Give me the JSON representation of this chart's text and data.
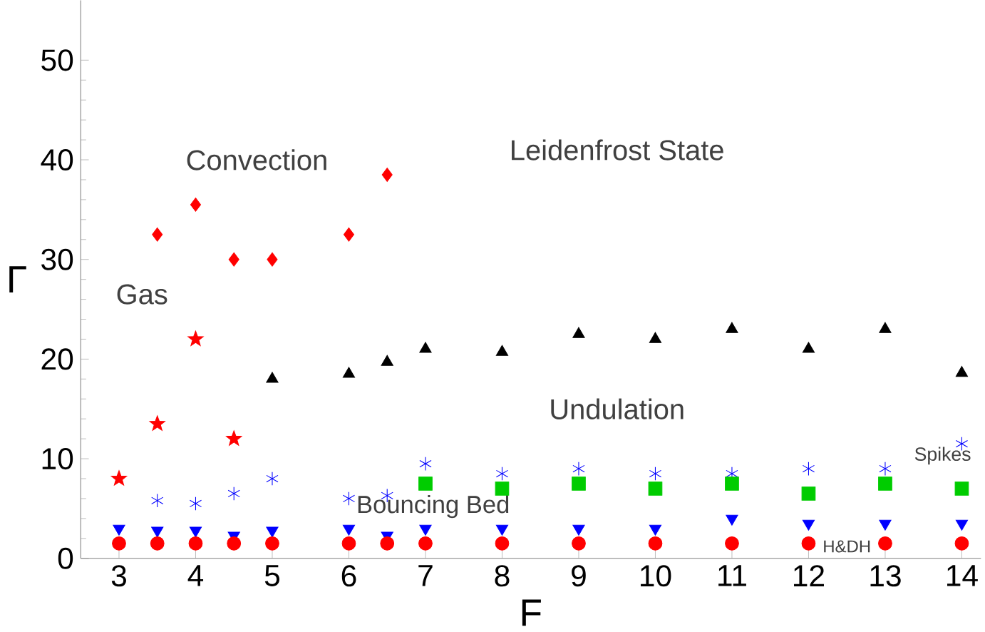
{
  "chart_data": {
    "type": "scatter",
    "xlabel": "F",
    "ylabel": "Γ",
    "xlim": [
      2.5,
      14.25
    ],
    "ylim": [
      0,
      56
    ],
    "xticks": [
      3,
      4,
      5,
      6,
      7,
      8,
      9,
      10,
      11,
      12,
      13,
      14
    ],
    "yticks": [
      0,
      10,
      20,
      30,
      40,
      50
    ],
    "series": [
      {
        "marker": "diamond",
        "color": "#ff0000",
        "x": [
          3.5,
          4,
          4.5,
          5,
          6,
          6.5
        ],
        "values": [
          32.5,
          35.5,
          30,
          30,
          32.5,
          38.5
        ]
      },
      {
        "marker": "star",
        "color": "#ff0000",
        "x": [
          3,
          3.5,
          4,
          4.5
        ],
        "values": [
          8,
          13.5,
          22,
          12
        ]
      },
      {
        "marker": "triangle",
        "color": "#000000",
        "x": [
          5,
          6,
          6.5,
          7,
          8,
          9,
          10,
          11,
          12,
          13,
          14
        ],
        "values": [
          18,
          18.5,
          19.7,
          21,
          20.7,
          22.5,
          22,
          23,
          21,
          23,
          18.6
        ]
      },
      {
        "marker": "cross",
        "color": "#0000ff",
        "x": [
          3.5,
          4,
          4.5,
          5,
          6,
          6.5,
          7,
          8,
          9,
          10,
          11,
          12,
          13,
          14
        ],
        "values": [
          5.8,
          5.5,
          6.5,
          8,
          6,
          6.3,
          9.5,
          8.5,
          9,
          8.5,
          8.5,
          9,
          9,
          11.5
        ]
      },
      {
        "marker": "square",
        "color": "#00cc00",
        "x": [
          7,
          8,
          9,
          10,
          11,
          12,
          13,
          14
        ],
        "values": [
          7.5,
          7,
          7.5,
          7,
          7.5,
          6.5,
          7.5,
          7
        ]
      },
      {
        "marker": "triangle-down",
        "color": "#0000ff",
        "x": [
          3,
          3.5,
          4,
          4.5,
          5,
          6,
          6.5,
          7,
          8,
          9,
          10,
          11,
          12,
          13,
          14
        ],
        "values": [
          3,
          2.8,
          2.8,
          2.3,
          2.8,
          3,
          2.3,
          3,
          3,
          3,
          3,
          4,
          3.5,
          3.5,
          3.5
        ]
      },
      {
        "marker": "circle",
        "color": "#ff0000",
        "x": [
          3,
          3.5,
          4,
          4.5,
          5,
          6,
          6.5,
          7,
          8,
          9,
          10,
          11,
          12,
          13,
          14
        ],
        "values": [
          1.5,
          1.5,
          1.5,
          1.5,
          1.5,
          1.5,
          1.5,
          1.5,
          1.5,
          1.5,
          1.5,
          1.5,
          1.5,
          1.5,
          1.5
        ]
      }
    ],
    "annotations": [
      "Convection",
      "Leidenfrost State",
      "Gas",
      "Undulation",
      "Bouncing Bed",
      "Spikes",
      "H&DH"
    ]
  }
}
